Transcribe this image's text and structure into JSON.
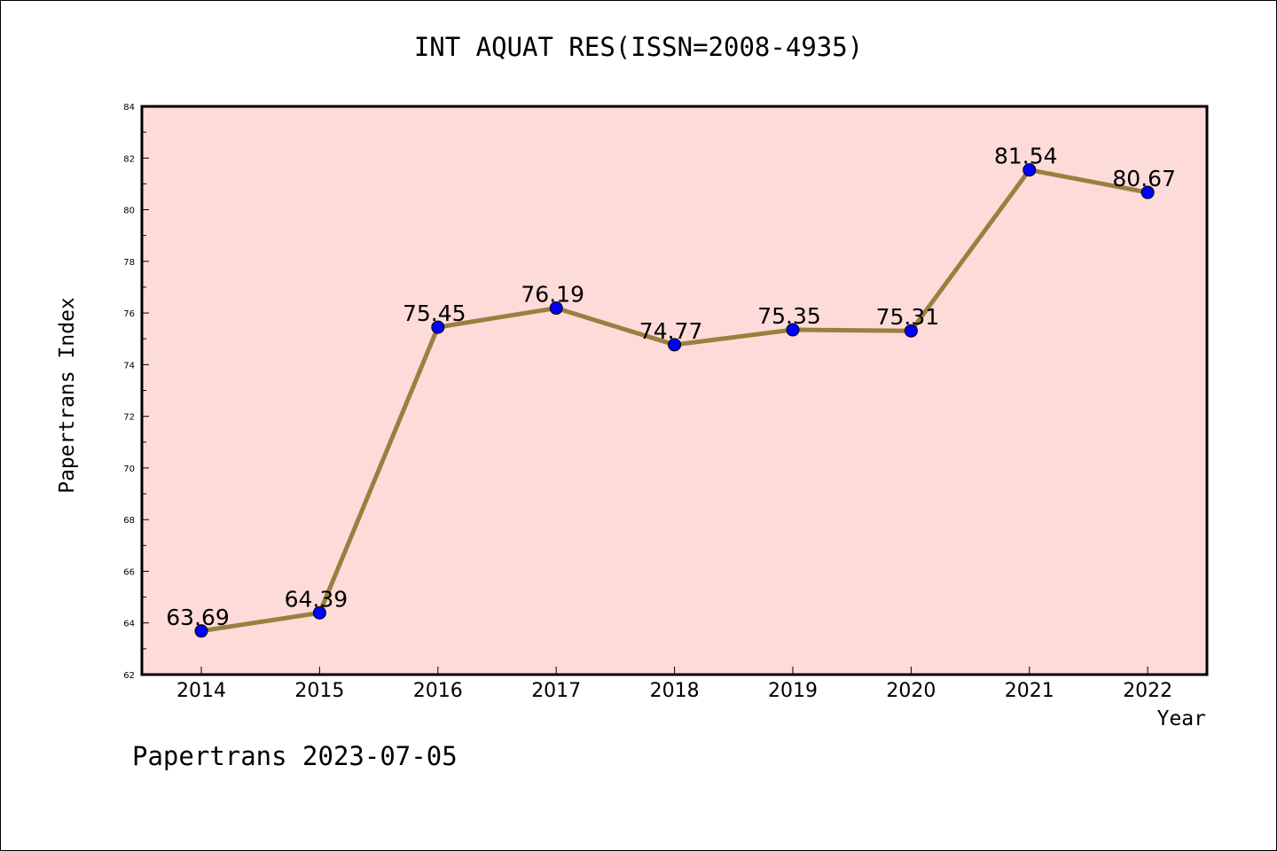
{
  "chart_data": {
    "type": "line",
    "title": "INT AQUAT RES(ISSN=2008-4935)",
    "xlabel": "Year",
    "ylabel": "Papertrans Index",
    "categories": [
      "2014",
      "2015",
      "2016",
      "2017",
      "2018",
      "2019",
      "2020",
      "2021",
      "2022"
    ],
    "values": [
      63.69,
      64.39,
      75.45,
      76.19,
      74.77,
      75.35,
      75.31,
      81.54,
      80.67
    ],
    "data_labels": [
      "63.69",
      "64.39",
      "75.45",
      "76.19",
      "74.77",
      "75.35",
      "75.31",
      "81.54",
      "80.67"
    ],
    "ylim": [
      62,
      84
    ],
    "yticks": [
      62,
      64,
      66,
      68,
      70,
      72,
      74,
      76,
      78,
      80,
      82,
      84
    ],
    "grid": false,
    "colors": {
      "plot_background": "#fddbd8",
      "line": "#9a8040",
      "marker": "#0000ff"
    }
  },
  "footer": "Papertrans 2023-07-05"
}
